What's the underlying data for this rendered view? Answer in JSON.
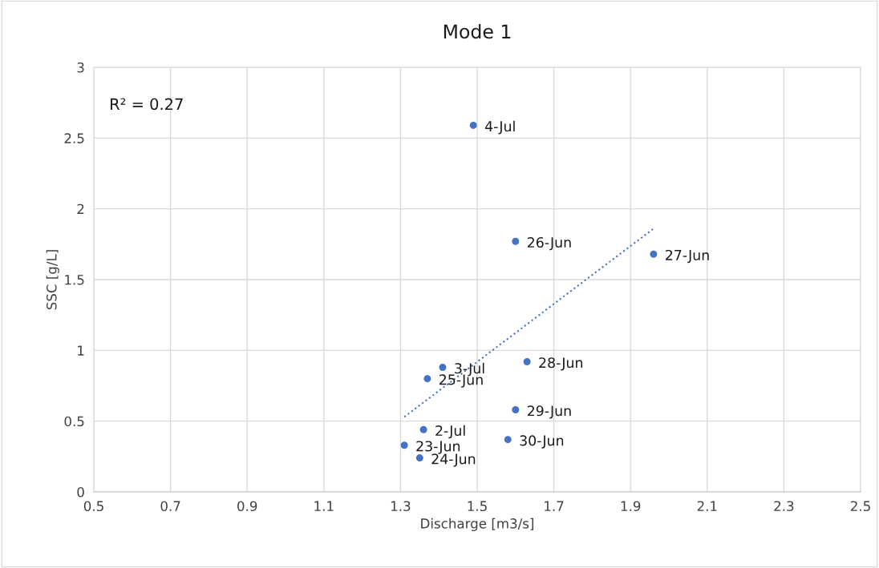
{
  "chart_data": {
    "type": "scatter",
    "title": "Mode 1",
    "xlabel": "Discharge [m3/s]",
    "ylabel": "SSC [g/L]",
    "xlim": [
      0.5,
      2.5
    ],
    "xticks": [
      0.5,
      0.7,
      0.9,
      1.1,
      1.3,
      1.5,
      1.7,
      1.9,
      2.1,
      2.3,
      2.5
    ],
    "ylim": [
      0,
      3
    ],
    "yticks": [
      0,
      0.5,
      1,
      1.5,
      2,
      2.5,
      3
    ],
    "grid": true,
    "series": [
      {
        "marker": "circle",
        "color": "#4472c4",
        "x": [
          1.49,
          1.6,
          1.96,
          1.63,
          1.41,
          1.37,
          1.6,
          1.36,
          1.58,
          1.31,
          1.35
        ],
        "values": [
          2.59,
          1.77,
          1.68,
          0.92,
          0.88,
          0.8,
          0.58,
          0.44,
          0.37,
          0.33,
          0.24
        ]
      },
      {
        "type": "line",
        "color": "#4472c4",
        "line_style": "dotted",
        "x": [
          1.31,
          1.96
        ],
        "values": [
          0.53,
          1.86
        ]
      }
    ],
    "annotations": [
      "R² = 0.27",
      {
        "text": "4-Jul",
        "x": 1.49,
        "y": 2.59
      },
      {
        "text": "26-Jun",
        "x": 1.6,
        "y": 1.77
      },
      {
        "text": "27-Jun",
        "x": 1.96,
        "y": 1.68
      },
      {
        "text": "28-Jun",
        "x": 1.63,
        "y": 0.92
      },
      {
        "text": "3-Jul",
        "x": 1.41,
        "y": 0.88
      },
      {
        "text": "25-Jun",
        "x": 1.37,
        "y": 0.8
      },
      {
        "text": "29-Jun",
        "x": 1.6,
        "y": 0.58
      },
      {
        "text": "2-Jul",
        "x": 1.36,
        "y": 0.44
      },
      {
        "text": "30-Jun",
        "x": 1.58,
        "y": 0.37
      },
      {
        "text": "23-Jun",
        "x": 1.31,
        "y": 0.33
      },
      {
        "text": "24-Jun",
        "x": 1.35,
        "y": 0.24
      }
    ]
  }
}
